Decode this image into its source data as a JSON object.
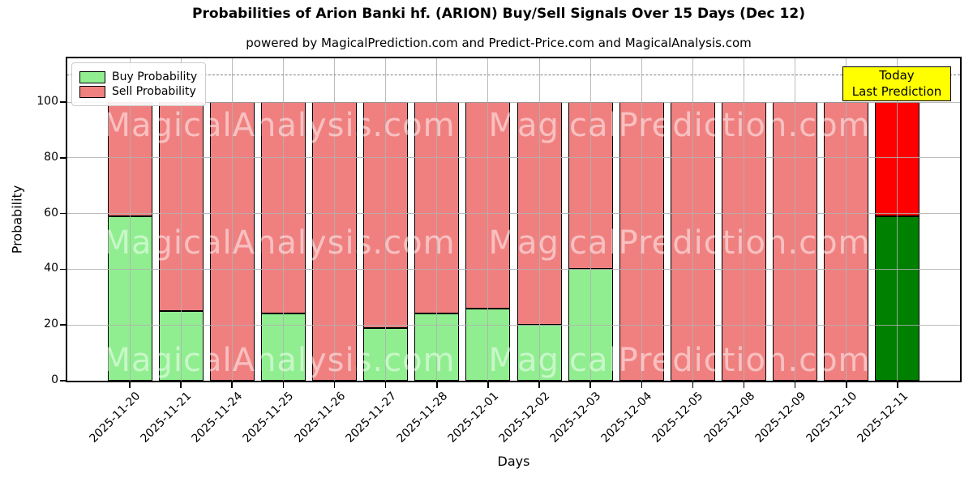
{
  "title": "Probabilities of Arion Banki hf. (ARION) Buy/Sell Signals Over 15 Days (Dec 12)",
  "subtitle": "powered by MagicalPrediction.com and Predict-Price.com and MagicalAnalysis.com",
  "legend": {
    "items": [
      {
        "label": "Buy Probability",
        "color": "#90ee90"
      },
      {
        "label": "Sell Probability",
        "color": "#f08080"
      }
    ]
  },
  "annotation": {
    "line1": "Today",
    "line2": "Last Prediction",
    "bg_color": "#ffff00"
  },
  "watermarks": {
    "left_text": "MagicalAnalysis.com",
    "right_text": "MagicalPrediction.com"
  },
  "chart_data": {
    "type": "bar",
    "stacked": true,
    "title": "Probabilities of Arion Banki hf. (ARION) Buy/Sell Signals Over 15 Days (Dec 12)",
    "xlabel": "Days",
    "ylabel": "Probability",
    "categories": [
      "2025-11-20",
      "2025-11-21",
      "2025-11-24",
      "2025-11-25",
      "2025-11-26",
      "2025-11-27",
      "2025-11-28",
      "2025-12-01",
      "2025-12-02",
      "2025-12-03",
      "2025-12-04",
      "2025-12-05",
      "2025-12-08",
      "2025-12-09",
      "2025-12-10",
      "2025-12-11"
    ],
    "series": [
      {
        "name": "Buy Probability",
        "color": "#90ee90",
        "today_color": "#008000",
        "values": [
          59,
          25,
          0,
          24,
          0,
          19,
          24,
          26,
          20,
          40,
          0,
          0,
          0,
          0,
          0,
          59
        ]
      },
      {
        "name": "Sell Probability",
        "color": "#f08080",
        "today_color": "#ff0000",
        "values": [
          41,
          75,
          100,
          76,
          100,
          81,
          76,
          74,
          80,
          60,
          100,
          100,
          100,
          100,
          100,
          41
        ]
      }
    ],
    "today_index": 15,
    "yticks": [
      0,
      20,
      40,
      60,
      80,
      100
    ],
    "ylim": [
      0,
      116
    ],
    "dashed_line_y": 110,
    "grid": true,
    "legend_position": "upper-left",
    "bar_edge_color": "#000000"
  }
}
